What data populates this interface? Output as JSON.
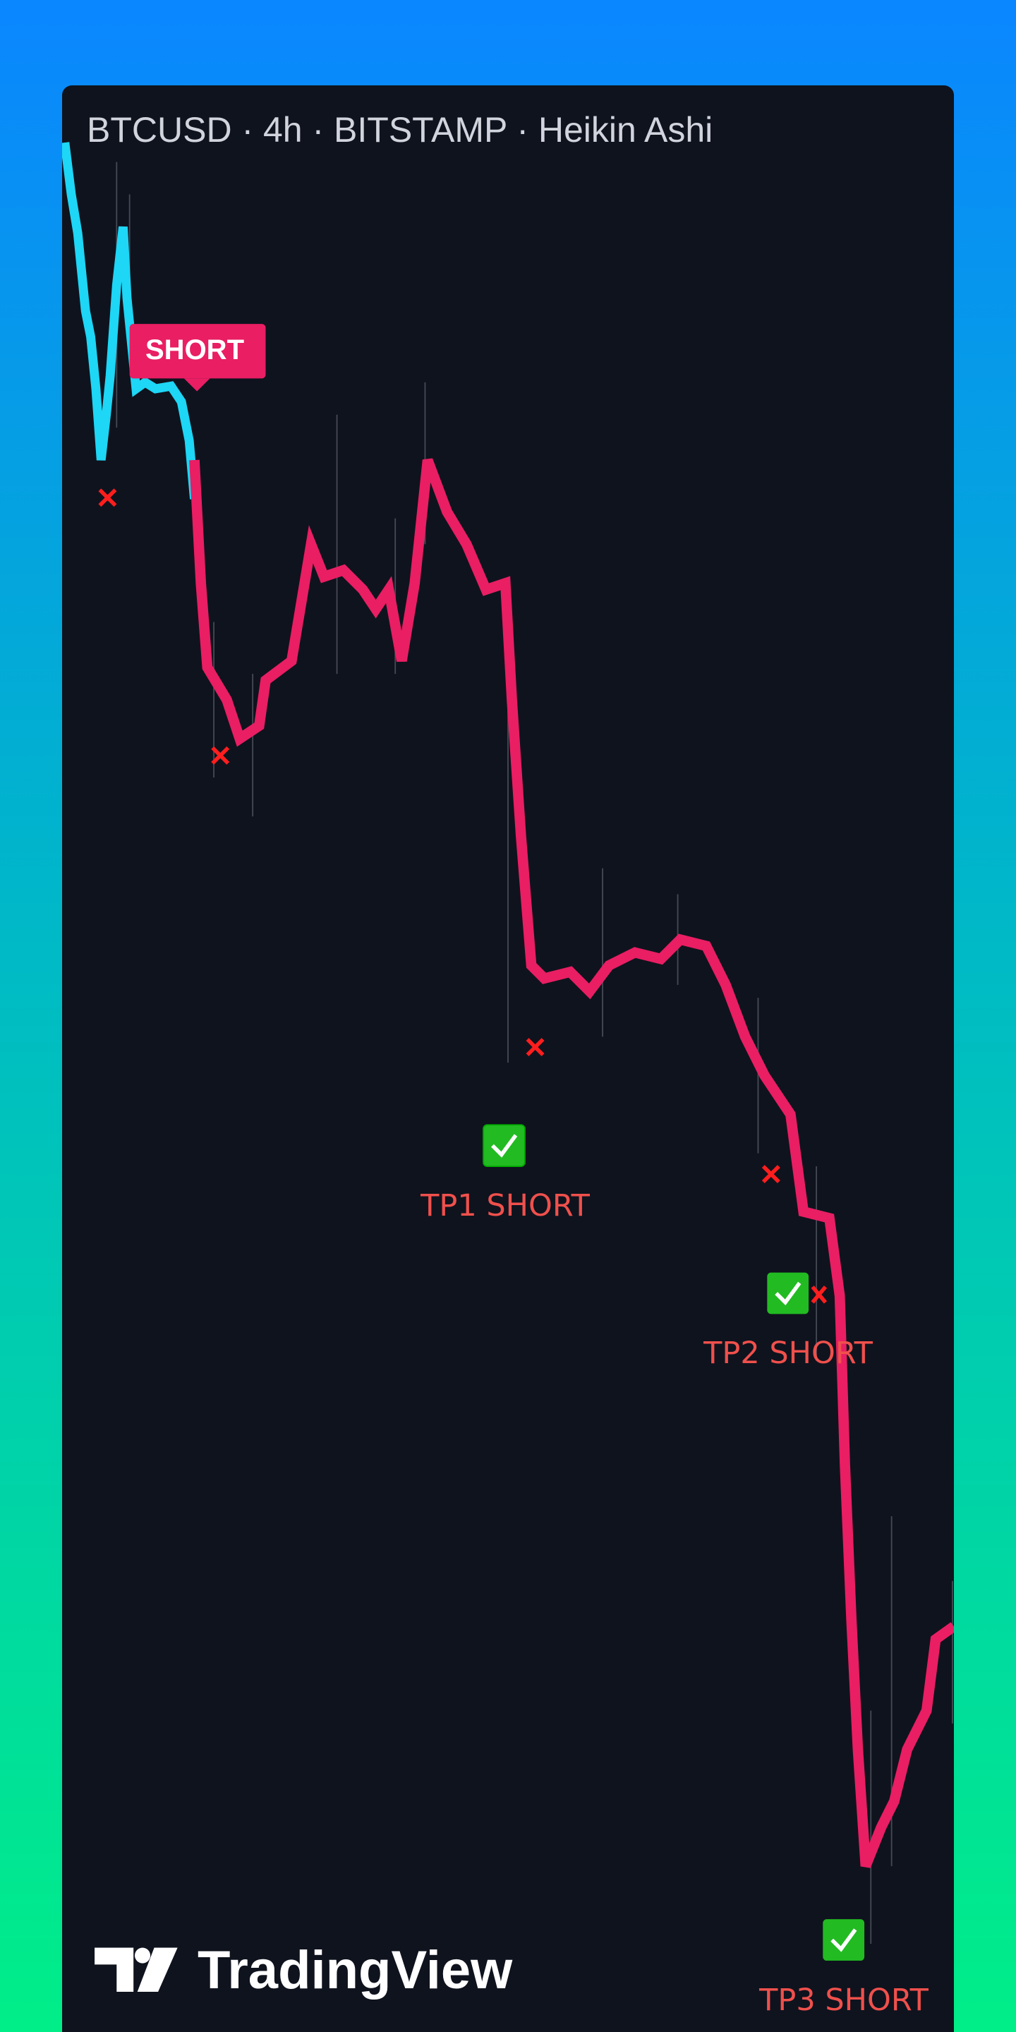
{
  "header": {
    "title": "BTCUSD · 4h · BITSTAMP · Heikin Ashi"
  },
  "signals": {
    "entry": "SHORT",
    "take_profits": [
      "TP1 SHORT",
      "TP2 SHORT",
      "TP3 SHORT"
    ]
  },
  "footer": {
    "logo": "TradingView"
  }
}
